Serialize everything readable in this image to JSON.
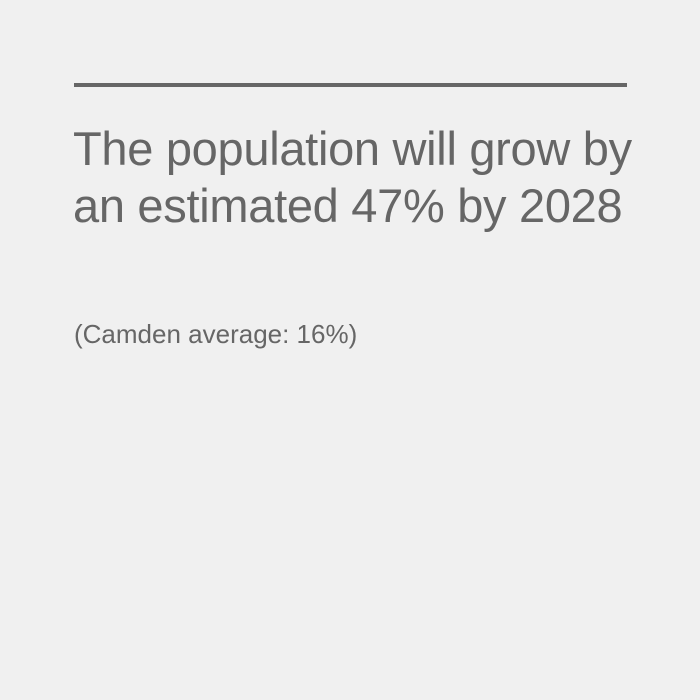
{
  "colors": {
    "background": "#f0f0f0",
    "text": "#666666",
    "rule": "#666666"
  },
  "headline": "The population will grow by an estimated 47% by 2028",
  "subtext": "(Camden average: 16%)"
}
